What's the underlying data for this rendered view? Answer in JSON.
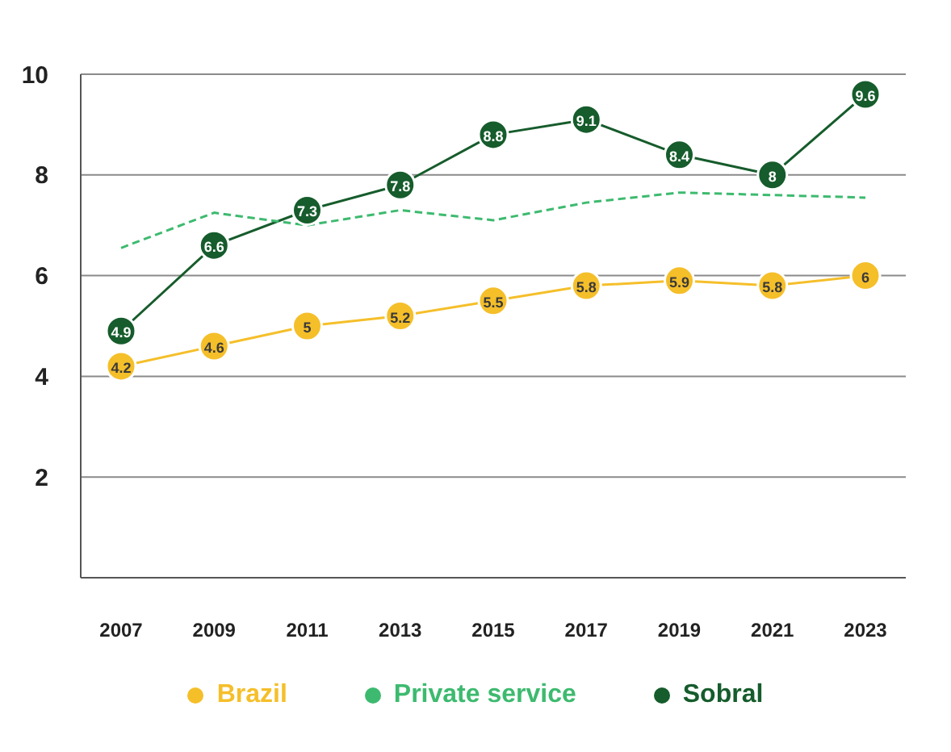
{
  "chart_data": {
    "type": "line",
    "categories": [
      "2007",
      "2009",
      "2011",
      "2013",
      "2015",
      "2017",
      "2019",
      "2021",
      "2023"
    ],
    "series": [
      {
        "name": "Brazil",
        "color": "#f5bf2a",
        "marker": "circle",
        "line_style": "solid",
        "values": [
          4.2,
          4.6,
          5,
          5.2,
          5.5,
          5.8,
          5.9,
          5.8,
          6
        ],
        "value_labels": [
          "4.2",
          "4.6",
          "5",
          "5.2",
          "5.5",
          "5.8",
          "5.9",
          "5.8",
          "6"
        ]
      },
      {
        "name": "Private service",
        "color": "#3dba6f",
        "marker": "none",
        "line_style": "dashed",
        "values": [
          6.55,
          7.25,
          7.0,
          7.3,
          7.1,
          7.45,
          7.65,
          7.6,
          7.55
        ]
      },
      {
        "name": "Sobral",
        "color": "#165c2c",
        "marker": "circle",
        "line_style": "solid",
        "values": [
          4.9,
          6.6,
          7.3,
          7.8,
          8.8,
          9.1,
          8.4,
          8,
          9.6
        ],
        "value_labels": [
          "4.9",
          "6.6",
          "7.3",
          "7.8",
          "8.8",
          "9.1",
          "8.4",
          "8",
          "9.6"
        ]
      }
    ],
    "ylim": [
      0,
      10
    ],
    "yticks": [
      2,
      4,
      6,
      8,
      10
    ],
    "grid": "y",
    "legend": "bottom"
  }
}
